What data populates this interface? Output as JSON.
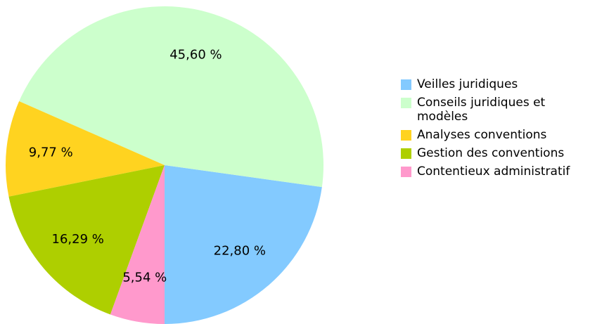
{
  "chart_data": {
    "type": "pie",
    "categories": [
      "Veilles juridiques",
      "Conseils juridiques et modèles",
      "Analyses conventions",
      "Gestion des conventions",
      "Contentieux administratif"
    ],
    "values": [
      22.8,
      45.6,
      9.77,
      16.29,
      5.54
    ],
    "value_labels": [
      "22,80 %",
      "45,60 %",
      "9,77 %",
      "16,29 %",
      "5,54 %"
    ],
    "colors": [
      "#83caff",
      "#ccffcc",
      "#ffd320",
      "#aecf00",
      "#ff99cc"
    ],
    "legend": "right"
  }
}
